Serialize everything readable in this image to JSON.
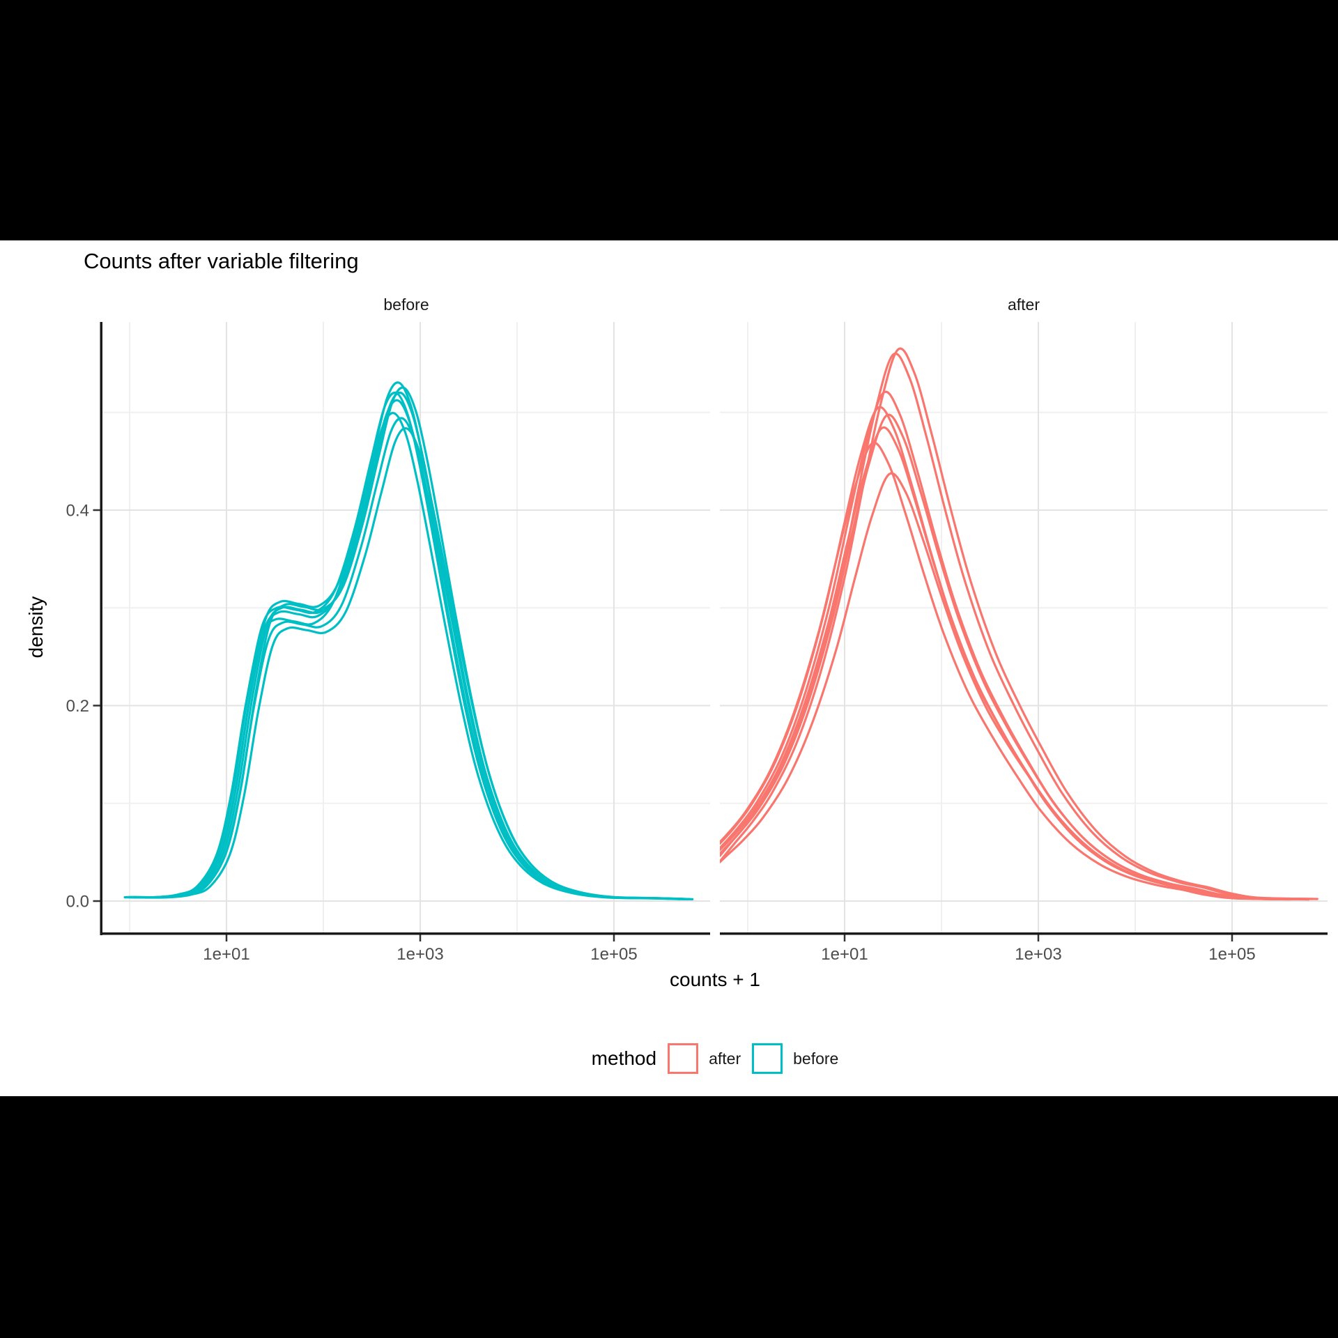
{
  "window": {
    "background": "#000000",
    "plot_background": "#ffffff"
  },
  "chart_data": {
    "type": "line",
    "subtype": "kernel-density",
    "title": "Counts after variable filtering",
    "xlabel": "counts + 1",
    "ylabel": "density",
    "x_scale": "log10",
    "xlim_log10": [
      -0.281,
      5.99
    ],
    "ylim": [
      -0.029,
      0.593
    ],
    "grid": true,
    "legend_position": "bottom",
    "x_major_ticks": [
      {
        "label": "1e+01",
        "log10": 1
      },
      {
        "label": "1e+03",
        "log10": 3
      },
      {
        "label": "1e+05",
        "log10": 5
      }
    ],
    "x_minor_log10": [
      0,
      2,
      4,
      6
    ],
    "y_major_ticks": [
      {
        "label": "0.0",
        "value": 0.0
      },
      {
        "label": "0.2",
        "value": 0.2
      },
      {
        "label": "0.4",
        "value": 0.4
      }
    ],
    "y_minor_values": [
      0.1,
      0.3,
      0.5
    ],
    "facets": [
      {
        "label": "before",
        "color": "#00BFC4",
        "clip_left": false,
        "base_curve": [
          [
            0.0,
            0.004
          ],
          [
            0.3,
            0.004
          ],
          [
            0.55,
            0.007
          ],
          [
            0.75,
            0.016
          ],
          [
            0.95,
            0.05
          ],
          [
            1.1,
            0.115
          ],
          [
            1.25,
            0.21
          ],
          [
            1.4,
            0.282
          ],
          [
            1.55,
            0.3
          ],
          [
            1.75,
            0.298
          ],
          [
            1.95,
            0.296
          ],
          [
            2.15,
            0.318
          ],
          [
            2.35,
            0.38
          ],
          [
            2.52,
            0.45
          ],
          [
            2.66,
            0.505
          ],
          [
            2.78,
            0.52
          ],
          [
            2.9,
            0.498
          ],
          [
            3.02,
            0.448
          ],
          [
            3.15,
            0.38
          ],
          [
            3.3,
            0.298
          ],
          [
            3.48,
            0.205
          ],
          [
            3.65,
            0.133
          ],
          [
            3.85,
            0.076
          ],
          [
            4.05,
            0.042
          ],
          [
            4.3,
            0.02
          ],
          [
            4.6,
            0.009
          ],
          [
            4.95,
            0.004
          ],
          [
            5.4,
            0.003
          ],
          [
            5.73,
            0.002
          ]
        ],
        "series": [
          {
            "name": "curve-1",
            "x_shift": -0.05,
            "y_scale": 0.96
          },
          {
            "name": "curve-2",
            "x_shift": -0.03,
            "y_scale": 1.0
          },
          {
            "name": "curve-3",
            "x_shift": -0.01,
            "y_scale": 0.985
          },
          {
            "name": "curve-4",
            "x_shift": 0.0,
            "y_scale": 1.02
          },
          {
            "name": "curve-5",
            "x_shift": 0.02,
            "y_scale": 1.0
          },
          {
            "name": "curve-6",
            "x_shift": 0.035,
            "y_scale": 0.95
          },
          {
            "name": "curve-7",
            "x_shift": 0.05,
            "y_scale": 1.01
          },
          {
            "name": "curve-8",
            "x_shift": 0.08,
            "y_scale": 0.93
          }
        ]
      },
      {
        "label": "after",
        "color": "#F8766D",
        "clip_left": true,
        "base_curve": [
          [
            -0.28,
            0.055
          ],
          [
            -0.1,
            0.075
          ],
          [
            0.1,
            0.102
          ],
          [
            0.35,
            0.148
          ],
          [
            0.6,
            0.215
          ],
          [
            0.85,
            0.305
          ],
          [
            1.05,
            0.395
          ],
          [
            1.22,
            0.468
          ],
          [
            1.4,
            0.52
          ],
          [
            1.57,
            0.498
          ],
          [
            1.75,
            0.44
          ],
          [
            1.95,
            0.368
          ],
          [
            2.15,
            0.302
          ],
          [
            2.4,
            0.236
          ],
          [
            2.65,
            0.186
          ],
          [
            2.9,
            0.142
          ],
          [
            3.15,
            0.102
          ],
          [
            3.45,
            0.066
          ],
          [
            3.75,
            0.042
          ],
          [
            4.05,
            0.027
          ],
          [
            4.35,
            0.018
          ],
          [
            4.6,
            0.013
          ],
          [
            4.85,
            0.007
          ],
          [
            5.15,
            0.003
          ],
          [
            5.73,
            0.002
          ]
        ],
        "series": [
          {
            "name": "curve-1",
            "x_shift": -0.12,
            "y_scale": 0.9
          },
          {
            "name": "curve-2",
            "x_shift": -0.06,
            "y_scale": 0.97
          },
          {
            "name": "curve-3",
            "x_shift": -0.02,
            "y_scale": 0.93
          },
          {
            "name": "curve-4",
            "x_shift": 0.0,
            "y_scale": 1.0
          },
          {
            "name": "curve-5",
            "x_shift": 0.03,
            "y_scale": 0.955
          },
          {
            "name": "curve-6",
            "x_shift": 0.06,
            "y_scale": 0.84
          },
          {
            "name": "curve-7",
            "x_shift": 0.1,
            "y_scale": 1.075
          },
          {
            "name": "curve-8",
            "x_shift": 0.15,
            "y_scale": 1.085
          }
        ]
      }
    ],
    "legend": {
      "title": "method",
      "position": "bottom",
      "items": [
        {
          "label": "after",
          "color": "#F8766D"
        },
        {
          "label": "before",
          "color": "#00BFC4"
        }
      ]
    },
    "style_colors": {
      "axis_line": "#1a1a1a",
      "tick_mark": "#333333",
      "tick_label": "#4d4d4d",
      "grid_major": "#e3e3e3",
      "grid_minor": "#f0f0f0"
    }
  }
}
